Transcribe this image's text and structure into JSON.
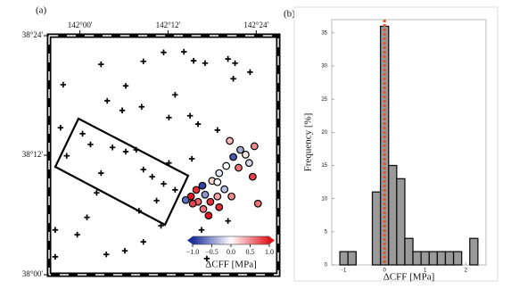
{
  "chart_data": [
    {
      "type": "scatter",
      "title": "(a)",
      "xlim": [
        141.93,
        142.45
      ],
      "ylim": [
        38.0,
        38.4
      ],
      "xticks": [
        {
          "value": 142.0,
          "label": "142°00'"
        },
        {
          "value": 142.2,
          "label": "142°12'"
        },
        {
          "value": 142.4,
          "label": "142°24'"
        }
      ],
      "yticks": [
        {
          "value": 38.0,
          "label": "38°00'"
        },
        {
          "value": 38.2,
          "label": "38°12'"
        },
        {
          "value": 38.4,
          "label": "38°24'"
        }
      ],
      "series": [
        {
          "marker": "cross",
          "color": "#000000",
          "x": [
            141.962,
            142.048,
            142.104,
            142.144,
            142.19,
            142.236,
            142.258,
            142.284,
            142.336,
            142.352,
            142.386,
            142.348,
            142.062,
            142.096,
            142.14,
            142.202,
            142.216,
            142.25,
            142.268,
            142.312,
            141.956,
            142.006,
            142.024,
            142.074,
            142.104,
            142.128,
            142.144,
            142.164,
            142.19,
            142.202,
            142.216,
            142.174,
            142.048,
            142.038,
            142.016,
            141.994,
            141.944,
            141.944,
            142.06,
            142.144,
            142.102,
            142.184,
            142.276,
            142.288,
            142.336,
            142.424,
            141.97,
            142.254,
            142.134
          ],
          "y": [
            38.318,
            38.352,
            38.316,
            38.357,
            38.372,
            38.373,
            38.358,
            38.354,
            38.361,
            38.354,
            38.339,
            38.328,
            38.291,
            38.275,
            38.281,
            38.263,
            38.301,
            38.266,
            38.252,
            38.242,
            38.246,
            38.236,
            38.218,
            38.213,
            38.206,
            38.209,
            38.176,
            38.164,
            38.152,
            38.187,
            38.142,
            38.124,
            38.17,
            38.137,
            38.096,
            38.067,
            38.075,
            38.03,
            38.034,
            38.055,
            38.04,
            38.082,
            38.075,
            38.027,
            38.09,
            38.06,
            38.199,
            38.194,
            38.107
          ]
        },
        {
          "marker": "circle",
          "color": "#000000",
          "x": [
            142.34,
            142.364,
            142.376,
            142.396,
            142.348,
            142.332,
            142.36,
            142.384,
            142.392,
            142.316,
            142.3,
            142.278,
            142.264,
            142.252,
            142.268,
            142.284,
            142.296,
            142.312,
            142.328,
            142.28,
            142.256,
            142.24,
            142.316,
            142.344,
            142.404,
            142.292,
            142.312
          ],
          "y": [
            38.224,
            38.209,
            38.201,
            38.215,
            38.197,
            38.182,
            38.179,
            38.187,
            38.164,
            38.17,
            38.157,
            38.149,
            38.142,
            38.131,
            38.122,
            38.134,
            38.122,
            38.131,
            38.143,
            38.11,
            38.119,
            38.125,
            38.113,
            38.131,
            38.119,
            38.099,
            38.155
          ],
          "values": [
            0.3,
            -0.4,
            0.1,
            0.5,
            -0.8,
            0.0,
            0.6,
            -0.2,
            0.8,
            -0.1,
            0.2,
            -0.9,
            0.9,
            1.0,
            0.7,
            -0.5,
            0.9,
            0.4,
            -0.3,
            0.6,
            0.8,
            -0.7,
            0.9,
            0.5,
            0.6,
            1.0,
            0.0
          ]
        }
      ],
      "colorbar": {
        "clim": [
          -1,
          1
        ],
        "colormap": [
          "#1b2e9c",
          "#ffffff",
          "#e3141e"
        ],
        "ticks": [
          {
            "value": -1,
            "label": "−1.0"
          },
          {
            "value": -0.5,
            "label": "−0.5"
          },
          {
            "value": 0,
            "label": "0.0"
          },
          0.5,
          {
            "value": 1,
            "label": "1.0"
          }
        ],
        "label": "ΔCFF [MPa]"
      }
    },
    {
      "type": "histogram",
      "title": "(b)",
      "bins": [
        -1.1,
        -0.9,
        -0.7,
        -0.5,
        -0.3,
        -0.1,
        0.1,
        0.3,
        0.5,
        0.7,
        0.9,
        1.1,
        1.3,
        1.5,
        1.7,
        1.9,
        2.1,
        2.3
      ],
      "counts": [
        2,
        2,
        0,
        0,
        11,
        36,
        15,
        13,
        4,
        2,
        2,
        2,
        2,
        2,
        2,
        0,
        4
      ],
      "color": "#9a9a9a",
      "xlim": [
        -1.3,
        2.5
      ],
      "ylim": [
        0,
        37
      ],
      "xticks": [
        -1,
        0,
        1,
        2
      ],
      "yticks": [
        0,
        5,
        10,
        15,
        20,
        25,
        30,
        35
      ],
      "xlabel": "ΔCFF [MPa]",
      "ylabel": "Frequency [%]",
      "vline": 0,
      "vline_color": "#e8502a"
    }
  ]
}
